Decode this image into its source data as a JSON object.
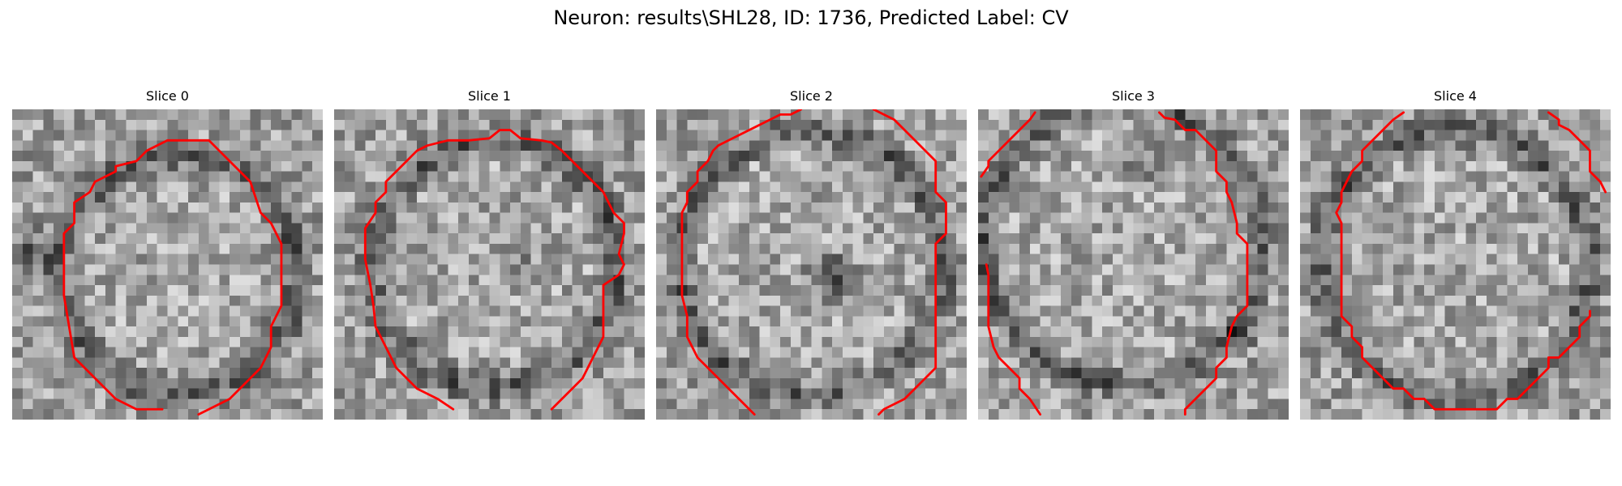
{
  "figure": {
    "title": "Neuron: results\\SHL28, ID: 1736, Predicted Label: CV",
    "contour_color": "#ff0000"
  },
  "panels": [
    {
      "title": "Slice 0"
    },
    {
      "title": "Slice 1"
    },
    {
      "title": "Slice 2"
    },
    {
      "title": "Slice 3"
    },
    {
      "title": "Slice 4"
    }
  ]
}
